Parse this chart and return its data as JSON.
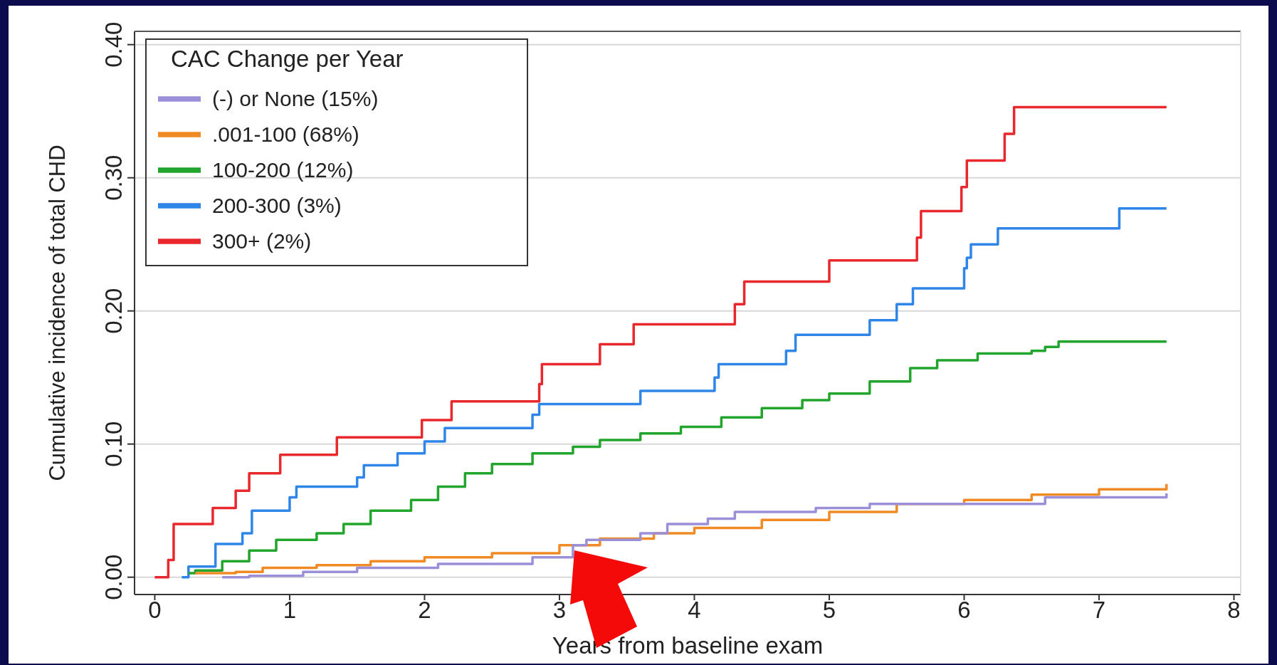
{
  "chart_data": {
    "type": "step",
    "xlabel": "Years from baseline exam",
    "ylabel": "Cumulative incidence of total CHD",
    "legend_title": "CAC Change per Year",
    "xlim": [
      -0.15,
      8.05
    ],
    "xticks": [
      0,
      1,
      2,
      3,
      4,
      5,
      6,
      7,
      8
    ],
    "ylim": [
      -0.013,
      0.41
    ],
    "yticks": [
      {
        "value": 0,
        "label": "0.00"
      },
      {
        "value": 0.1,
        "label": "0.10"
      },
      {
        "value": 0.2,
        "label": "0.20"
      },
      {
        "value": 0.3,
        "label": "0.30"
      },
      {
        "value": 0.4,
        "label": "0.40"
      }
    ],
    "grid": "y",
    "legend": "top left",
    "line_style": "solid",
    "series": [
      {
        "name": "300+ (2%)",
        "color": "#e8282c",
        "x": [
          0,
          0.1,
          0.14,
          0.43,
          0.6,
          0.7,
          0.93,
          1.35,
          1.98,
          2.2,
          2.85,
          2.87,
          3.3,
          3.55,
          4.3,
          4.37,
          5.0,
          5.65,
          5.68,
          5.98,
          6.02,
          6.3,
          6.37,
          7.5
        ],
        "values": [
          0,
          0.013,
          0.04,
          0.052,
          0.065,
          0.078,
          0.092,
          0.105,
          0.118,
          0.132,
          0.145,
          0.16,
          0.175,
          0.19,
          0.205,
          0.222,
          0.238,
          0.255,
          0.275,
          0.293,
          0.313,
          0.333,
          0.353,
          0.353
        ]
      },
      {
        "name": "200-300 (3%)",
        "color": "#2f86e8",
        "x": [
          0.2,
          0.25,
          0.45,
          0.65,
          0.72,
          1.0,
          1.05,
          1.5,
          1.55,
          1.8,
          2.0,
          2.15,
          2.8,
          2.85,
          3.6,
          4.15,
          4.18,
          4.68,
          4.75,
          5.3,
          5.5,
          5.62,
          6.0,
          6.02,
          6.05,
          6.25,
          7.15,
          7.5
        ],
        "values": [
          0,
          0.008,
          0.025,
          0.033,
          0.05,
          0.06,
          0.068,
          0.075,
          0.084,
          0.093,
          0.102,
          0.112,
          0.122,
          0.13,
          0.14,
          0.15,
          0.16,
          0.17,
          0.182,
          0.193,
          0.205,
          0.217,
          0.232,
          0.24,
          0.25,
          0.262,
          0.277,
          0.277
        ]
      },
      {
        "name": "100-200 (12%)",
        "color": "#22a52c",
        "x": [
          0.25,
          0.3,
          0.5,
          0.7,
          0.9,
          1.2,
          1.4,
          1.6,
          1.9,
          2.1,
          2.3,
          2.5,
          2.8,
          3.1,
          3.3,
          3.6,
          3.9,
          4.2,
          4.5,
          4.8,
          5.0,
          5.3,
          5.6,
          5.8,
          6.1,
          6.5,
          6.6,
          6.7,
          7.5
        ],
        "values": [
          0.003,
          0.005,
          0.012,
          0.02,
          0.028,
          0.033,
          0.04,
          0.05,
          0.058,
          0.068,
          0.078,
          0.085,
          0.093,
          0.098,
          0.103,
          0.108,
          0.113,
          0.12,
          0.127,
          0.133,
          0.138,
          0.147,
          0.157,
          0.163,
          0.168,
          0.17,
          0.173,
          0.177,
          0.177
        ]
      },
      {
        "name": ".001-100 (68%)",
        "color": "#f08a24",
        "x": [
          0.3,
          0.6,
          0.8,
          1.2,
          1.6,
          2.0,
          2.5,
          3.0,
          3.3,
          3.7,
          4.0,
          4.5,
          5.0,
          5.5,
          6.0,
          6.5,
          7.0,
          7.5
        ],
        "values": [
          0.003,
          0.004,
          0.007,
          0.009,
          0.012,
          0.015,
          0.018,
          0.024,
          0.029,
          0.033,
          0.037,
          0.043,
          0.049,
          0.055,
          0.058,
          0.062,
          0.066,
          0.07
        ]
      },
      {
        "name": "(-) or None (15%)",
        "color": "#9a8fd8",
        "x": [
          0.5,
          0.7,
          1.1,
          1.5,
          2.1,
          2.8,
          3.1,
          3.2,
          3.6,
          3.8,
          4.1,
          4.3,
          4.9,
          5.3,
          6.6,
          7.5
        ],
        "values": [
          0,
          0.001,
          0.004,
          0.007,
          0.01,
          0.015,
          0.024,
          0.028,
          0.033,
          0.04,
          0.044,
          0.049,
          0.052,
          0.055,
          0.06,
          0.063
        ]
      }
    ]
  }
}
